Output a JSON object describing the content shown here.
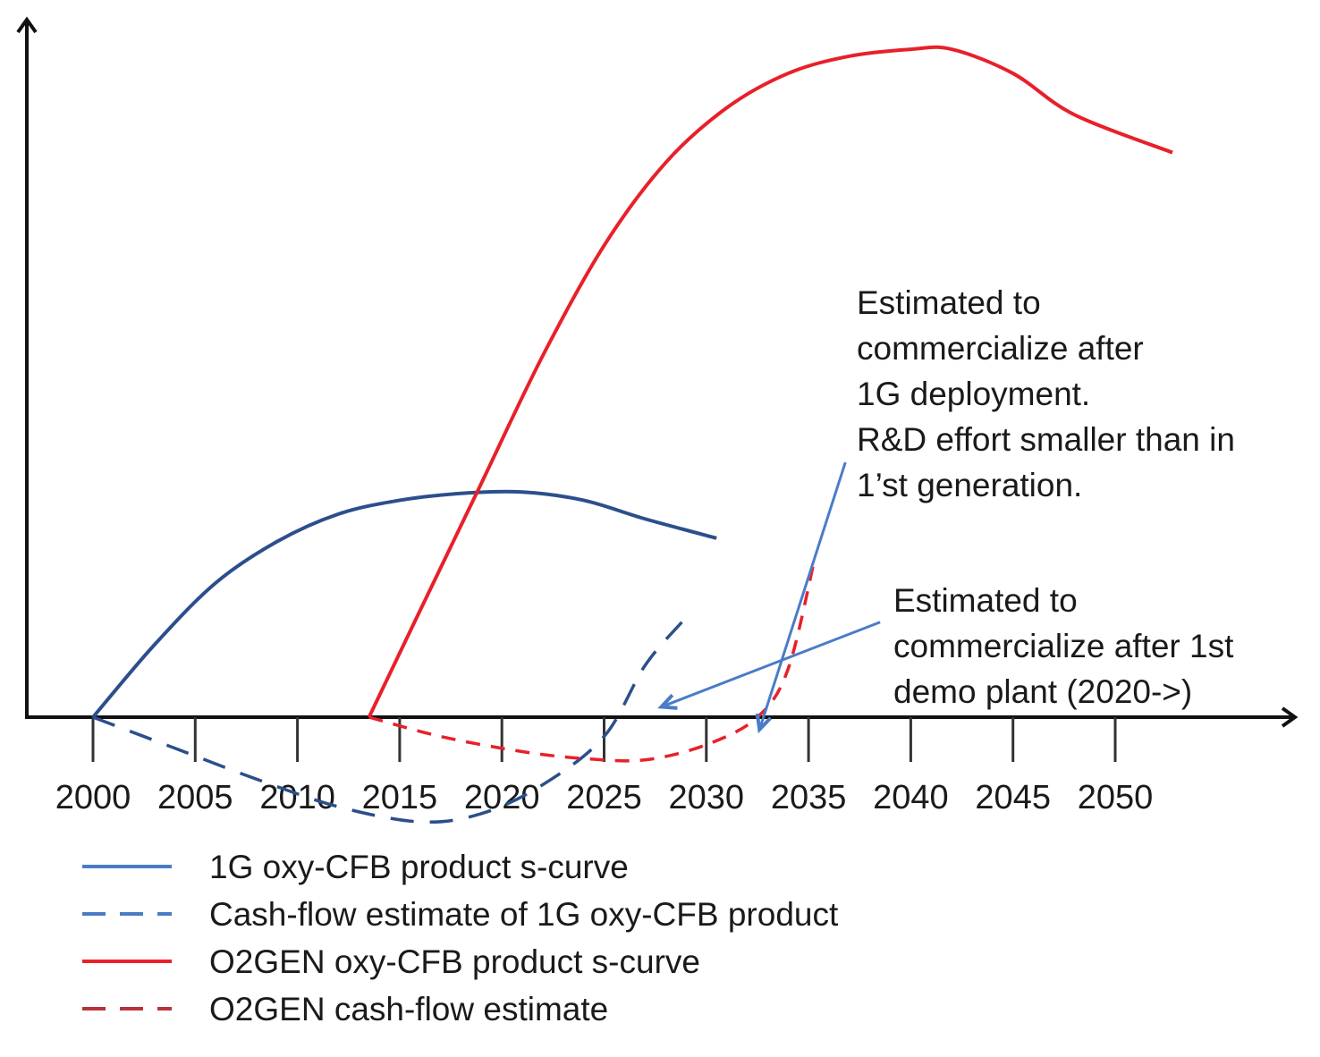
{
  "chart_data": {
    "type": "line",
    "title": "",
    "xlabel": "",
    "ylabel": "",
    "xlim": [
      1993,
      2068
    ],
    "ylim": [
      -14,
      100
    ],
    "grid": false,
    "x_ticks": [
      2000,
      2005,
      2010,
      2015,
      2020,
      2025,
      2030,
      2035,
      2040,
      2045,
      2050
    ],
    "x_tick_labels": [
      "2000",
      "2005",
      "2010",
      "2015",
      "2020",
      "2025",
      "2030",
      "2035",
      "2040",
      "2045",
      "2050"
    ],
    "legend_position": "bottom-left",
    "series": [
      {
        "name": "1G oxy-CFB product s-curve",
        "style": "solid",
        "color": "#2b4f8c",
        "legend_color": "#4a7cc7",
        "x": [
          2000,
          2003,
          2006,
          2009,
          2012,
          2015,
          2018,
          2021,
          2024,
          2027,
          2030.5
        ],
        "y": [
          0,
          10.5,
          19.5,
          25.5,
          29.5,
          31.5,
          32.5,
          32.7,
          31.5,
          28.8,
          26.0
        ]
      },
      {
        "name": "Cash-flow estimate of 1G oxy-CFB product",
        "style": "dashed",
        "color": "#2b4f8c",
        "legend_color": "#4a7cc7",
        "x": [
          2000,
          2004,
          2008,
          2012,
          2016,
          2019,
          2022,
          2025,
          2027,
          2028.8
        ],
        "y": [
          0,
          -4.5,
          -9.0,
          -13.0,
          -15.2,
          -14.0,
          -9.8,
          -2.8,
          7.5,
          13.8
        ]
      },
      {
        "name": "O2GEN oxy-CFB product s-curve",
        "style": "solid",
        "color": "#e8202a",
        "legend_color": "#e8202a",
        "x": [
          2013.5,
          2016,
          2019,
          2022,
          2025,
          2028,
          2031,
          2034,
          2037,
          2040,
          2042,
          2045,
          2048,
          2052.8
        ],
        "y": [
          0,
          15.5,
          34.0,
          52.5,
          68.5,
          80.5,
          88.5,
          93.5,
          96.0,
          97.0,
          97.0,
          93.5,
          87.5,
          82.0
        ]
      },
      {
        "name": "O2GEN cash-flow estimate",
        "style": "dashed",
        "color": "#e8202a",
        "legend_color": "#b8323a",
        "x": [
          2013.5,
          2017,
          2021,
          2024,
          2027,
          2030,
          2032.5,
          2034,
          2035.3
        ],
        "y": [
          0,
          -2.8,
          -5.0,
          -6.0,
          -6.2,
          -4.0,
          0,
          7.0,
          23.0
        ]
      }
    ],
    "annotations": [
      {
        "lines": [
          "Estimated to",
          "commercialize after",
          "1G deployment.",
          "R&D effort smaller than in",
          "1’st generation."
        ],
        "arrow_from": [
          2036.8,
          37.0
        ],
        "arrow_to": [
          2032.6,
          -1.8
        ]
      },
      {
        "lines": [
          "Estimated to",
          "commercialize after 1st",
          "demo plant (2020->)"
        ],
        "arrow_from": [
          2038.5,
          13.8
        ],
        "arrow_to": [
          2027.8,
          1.5
        ]
      }
    ]
  }
}
